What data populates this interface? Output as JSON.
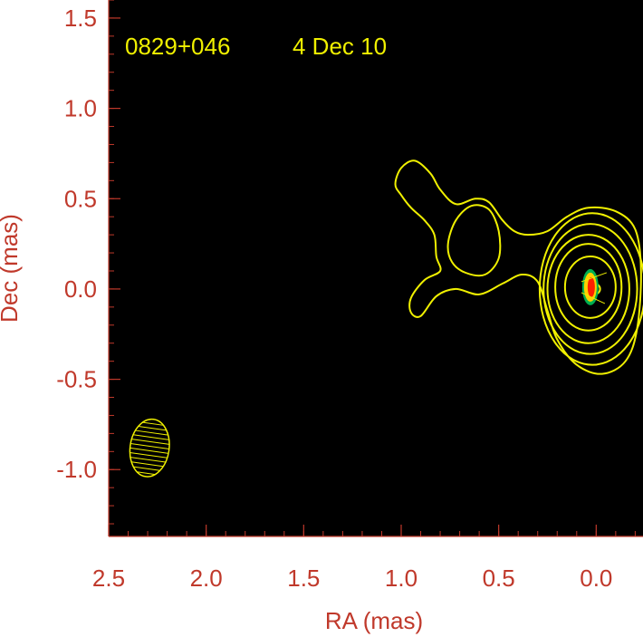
{
  "chart_data": {
    "type": "contour",
    "source_label": "0829+046",
    "epoch_label": "4 Dec 10",
    "xlabel": "RA (mas)",
    "ylabel": "Dec (mas)",
    "xlim": [
      2.5,
      -0.24
    ],
    "ylim": [
      -1.37,
      1.6
    ],
    "x_inverted": true,
    "xticks": [
      "2.5",
      "2.0",
      "1.5",
      "1.0",
      "0.5",
      "0.0"
    ],
    "xtick_values": [
      2.5,
      2.0,
      1.5,
      1.0,
      0.5,
      0.0
    ],
    "yticks": [
      "1.5",
      "1.0",
      "0.5",
      "0.0",
      "-0.5",
      "-1.0"
    ],
    "ytick_values": [
      1.5,
      1.0,
      0.5,
      0.0,
      -0.5,
      -1.0
    ],
    "background_color": "#000000",
    "axis_color": "#c0392b",
    "contour_color": "#f0f000",
    "beam": {
      "center": [
        2.29,
        -0.88
      ],
      "ra_semi_axis": 0.1,
      "dec_semi_axis": 0.16,
      "color": "#f0f000",
      "hatch": "horizontal"
    },
    "core": {
      "ra": 0.03,
      "dec": 0.01,
      "colors": [
        "#00b050",
        "#ffd000",
        "#ff2000"
      ]
    },
    "contours": {
      "inner_rings": [
        {
          "cx": 0.02,
          "cy": 0.0,
          "rx": 0.27,
          "ry": 0.42
        },
        {
          "cx": 0.03,
          "cy": 0.0,
          "rx": 0.24,
          "ry": 0.36
        },
        {
          "cx": 0.04,
          "cy": 0.0,
          "rx": 0.21,
          "ry": 0.3
        },
        {
          "cx": 0.04,
          "cy": 0.01,
          "rx": 0.17,
          "ry": 0.24
        },
        {
          "cx": 0.03,
          "cy": 0.01,
          "rx": 0.13,
          "ry": 0.17
        },
        {
          "cx": 0.01,
          "cy": 0.0,
          "rx": 0.03,
          "ry": 0.03
        }
      ],
      "outer_blob": [
        [
          -0.23,
          0.1
        ],
        [
          -0.2,
          0.33
        ],
        [
          -0.1,
          0.43
        ],
        [
          0.04,
          0.45
        ],
        [
          0.15,
          0.4
        ],
        [
          0.25,
          0.32
        ],
        [
          0.35,
          0.3
        ],
        [
          0.42,
          0.32
        ],
        [
          0.48,
          0.38
        ],
        [
          0.55,
          0.48
        ],
        [
          0.62,
          0.5
        ],
        [
          0.72,
          0.47
        ],
        [
          0.8,
          0.55
        ],
        [
          0.85,
          0.64
        ],
        [
          0.93,
          0.71
        ],
        [
          1.0,
          0.67
        ],
        [
          1.03,
          0.58
        ],
        [
          1.0,
          0.52
        ],
        [
          0.95,
          0.45
        ],
        [
          0.88,
          0.38
        ],
        [
          0.83,
          0.3
        ],
        [
          0.82,
          0.18
        ],
        [
          0.8,
          0.1
        ],
        [
          0.88,
          0.05
        ],
        [
          0.95,
          -0.05
        ],
        [
          0.95,
          -0.13
        ],
        [
          0.9,
          -0.15
        ],
        [
          0.82,
          -0.04
        ],
        [
          0.72,
          0.0
        ],
        [
          0.6,
          -0.03
        ],
        [
          0.48,
          0.03
        ],
        [
          0.38,
          0.08
        ],
        [
          0.3,
          0.04
        ],
        [
          0.25,
          -0.12
        ],
        [
          0.2,
          -0.28
        ],
        [
          0.1,
          -0.42
        ],
        [
          -0.03,
          -0.47
        ],
        [
          -0.15,
          -0.4
        ],
        [
          -0.21,
          -0.22
        ]
      ],
      "hole": [
        [
          0.76,
          0.25
        ],
        [
          0.72,
          0.38
        ],
        [
          0.64,
          0.46
        ],
        [
          0.55,
          0.44
        ],
        [
          0.5,
          0.32
        ],
        [
          0.5,
          0.17
        ],
        [
          0.57,
          0.08
        ],
        [
          0.67,
          0.09
        ],
        [
          0.74,
          0.15
        ]
      ]
    }
  }
}
